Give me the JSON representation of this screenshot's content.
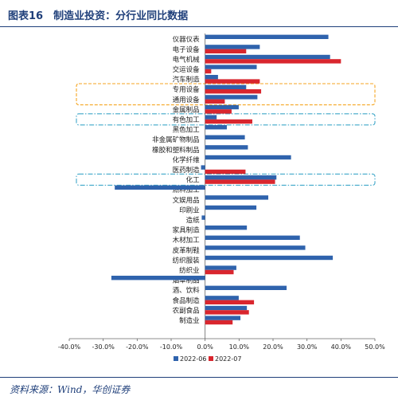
{
  "header": {
    "figure_title": "图表16　制造业投资：分行业同比数据"
  },
  "footer": {
    "source_note": "资料来源：Wind，华创证券"
  },
  "colors": {
    "series_2022_06": "#2f63ad",
    "series_2022_07": "#d9262e",
    "highlight_orange": "#f5a623",
    "highlight_teal": "#3fa7c9",
    "brand_navy": "#1f3f7a"
  },
  "chart_data": {
    "type": "bar",
    "orientation": "horizontal",
    "title": "",
    "xlabel": "",
    "ylabel": "",
    "xlim": [
      -40,
      50
    ],
    "x_ticks": [
      "-40.0%",
      "-30.0%",
      "-20.0%",
      "-10.0%",
      "0.0%",
      "10.0%",
      "20.0%",
      "30.0%",
      "40.0%",
      "50.0%"
    ],
    "tick_values": [
      -40,
      -30,
      -20,
      -10,
      0,
      10,
      20,
      30,
      40,
      50
    ],
    "grid": false,
    "legend_position": "bottom",
    "categories": [
      "仪器仪表",
      "电子设备",
      "电气机械",
      "交运设备",
      "汽车制造",
      "专用设备",
      "通用设备",
      "金属制品",
      "有色加工",
      "黑色加工",
      "非金属矿物制品",
      "橡胶和塑料制品",
      "化学纤维",
      "医药制造",
      "化工",
      "燃料加工",
      "文娱用品",
      "印刷业",
      "造纸",
      "家具制造",
      "木材加工",
      "皮革制鞋",
      "纺织服装",
      "纺织业",
      "烟草制品",
      "酒、饮料",
      "食品制造",
      "农副食品",
      "制造业"
    ],
    "series": [
      {
        "name": "2022-06",
        "values": [
          36.3,
          16.1,
          36.8,
          15.2,
          3.8,
          12.1,
          15.4,
          9.9,
          3.4,
          6.4,
          11.7,
          12.6,
          25.3,
          -1.2,
          21.0,
          -26.6,
          18.6,
          15.1,
          -1.0,
          12.3,
          27.9,
          29.5,
          37.6,
          9.2,
          -27.6,
          24.0,
          9.9,
          12.3,
          10.4
        ]
      },
      {
        "name": "2022-07",
        "values": null,
        "values_list": [
          0,
          12.1,
          40.0,
          1.8,
          16.1,
          16.5,
          5.8,
          7.8,
          13.9,
          0,
          0,
          0,
          0,
          11.9,
          20.6,
          0,
          0,
          0,
          0,
          0,
          0,
          0,
          0,
          8.4,
          0,
          0,
          14.4,
          12.9,
          8.1
        ]
      }
    ],
    "highlighted_categories": [
      {
        "categories": [
          "专用设备",
          "通用设备"
        ],
        "style": "orange-dashed"
      },
      {
        "categories": [
          "有色加工"
        ],
        "style": "teal-dashdot"
      },
      {
        "categories": [
          "化工"
        ],
        "style": "teal-dashdot"
      }
    ]
  }
}
